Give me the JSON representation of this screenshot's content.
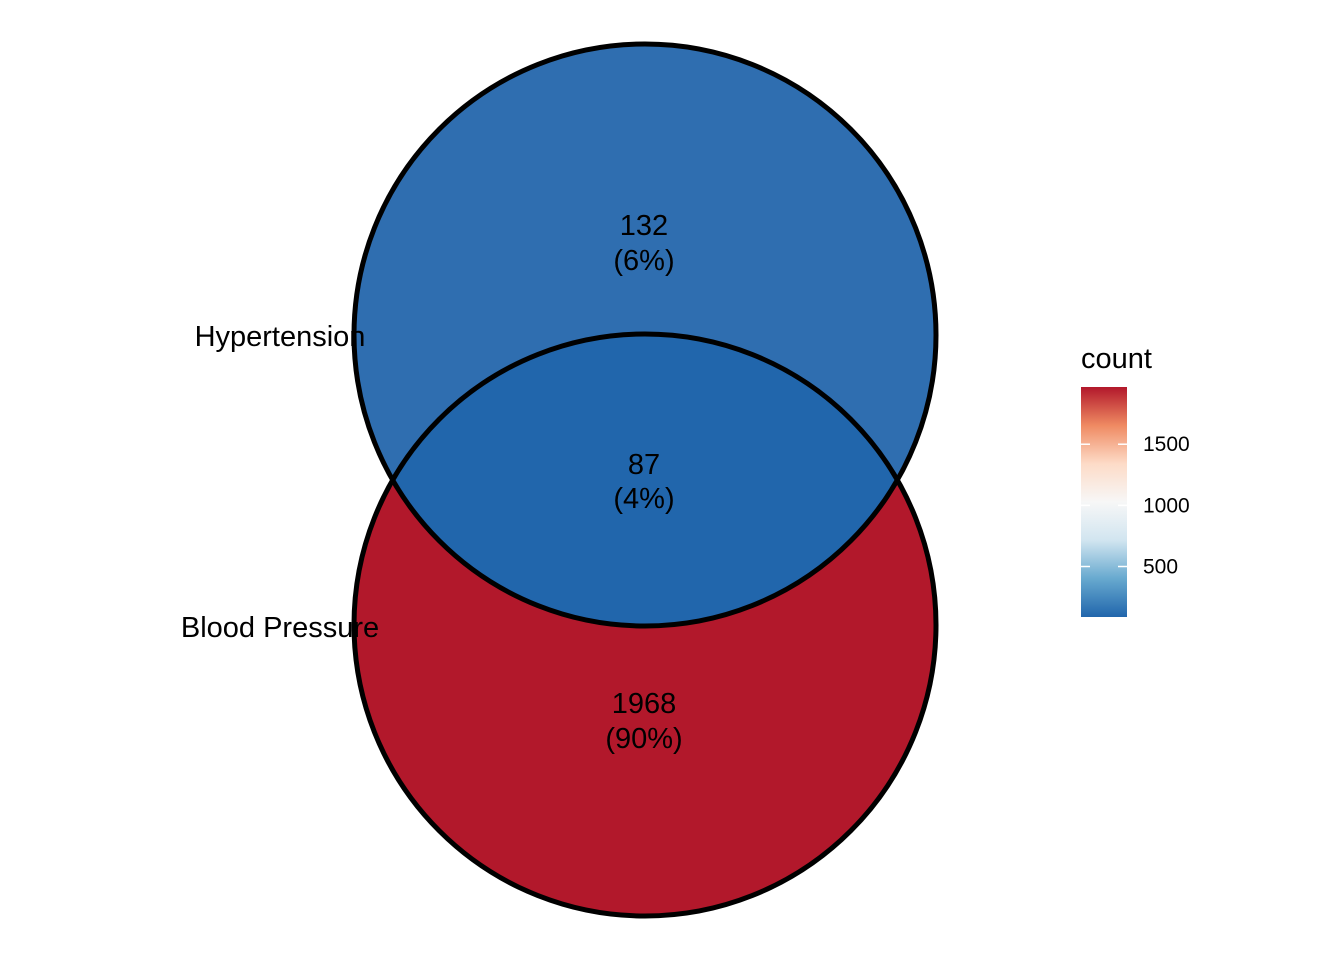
{
  "sets": [
    {
      "label": "Hypertension"
    },
    {
      "label": "Blood Pressure"
    }
  ],
  "regions": [
    {
      "id": "hypertension-only",
      "count": "132",
      "percent": "(6%)",
      "value": 132,
      "color": "#2f6eb0"
    },
    {
      "id": "intersection",
      "count": "87",
      "percent": "(4%)",
      "value": 87,
      "color": "#2166ac"
    },
    {
      "id": "blood-pressure-only",
      "count": "1968",
      "percent": "(90%)",
      "value": 1968,
      "color": "#b2182b"
    }
  ],
  "legend": {
    "title": "count",
    "range": [
      87,
      1968
    ],
    "ticks": [
      {
        "value": 500,
        "label": "500"
      },
      {
        "value": 1000,
        "label": "1000"
      },
      {
        "value": 1500,
        "label": "1500"
      }
    ],
    "gradient": [
      "#2166ac",
      "#67a9cf",
      "#d1e5f0",
      "#f7f7f7",
      "#fddbc7",
      "#ef8a62",
      "#b2182b"
    ]
  }
}
